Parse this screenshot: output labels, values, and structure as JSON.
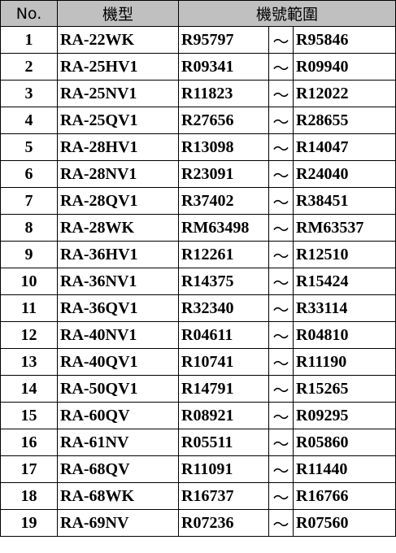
{
  "header": {
    "no": "No.",
    "model": "機型",
    "range": "機號範圍"
  },
  "table": {
    "rows": [
      [
        1,
        "RA-22WK",
        "R95797",
        "～",
        "R95846"
      ],
      [
        2,
        "RA-25HV1",
        "R09341",
        "～",
        "R09940"
      ],
      [
        3,
        "RA-25NV1",
        "R11823",
        "～",
        "R12022"
      ],
      [
        4,
        "RA-25QV1",
        "R27656",
        "～",
        "R28655"
      ],
      [
        5,
        "RA-28HV1",
        "R13098",
        "～",
        "R14047"
      ],
      [
        6,
        "RA-28NV1",
        "R23091",
        "～",
        "R24040"
      ],
      [
        7,
        "RA-28QV1",
        "R37402",
        "～",
        "R38451"
      ],
      [
        8,
        "RA-28WK",
        "RM63498",
        "～",
        "RM63537"
      ],
      [
        9,
        "RA-36HV1",
        "R12261",
        "～",
        "R12510"
      ],
      [
        10,
        "RA-36NV1",
        "R14375",
        "～",
        "R15424"
      ],
      [
        11,
        "RA-36QV1",
        "R32340",
        "～",
        "R33114"
      ],
      [
        12,
        "RA-40NV1",
        "R04611",
        "～",
        "R04810"
      ],
      [
        13,
        "RA-40QV1",
        "R10741",
        "～",
        "R11190"
      ],
      [
        14,
        "RA-50QV1",
        "R14791",
        "～",
        "R15265"
      ],
      [
        15,
        "RA-60QV",
        "R08921",
        "～",
        "R09295"
      ],
      [
        16,
        "RA-61NV",
        "R05511",
        "～",
        "R05860"
      ],
      [
        17,
        "RA-68QV",
        "R11091",
        "～",
        "R11440"
      ],
      [
        18,
        "RA-68WK",
        "R16737",
        "～",
        "R16766"
      ],
      [
        19,
        "RA-69NV",
        "R07236",
        "～",
        "R07560"
      ]
    ]
  }
}
